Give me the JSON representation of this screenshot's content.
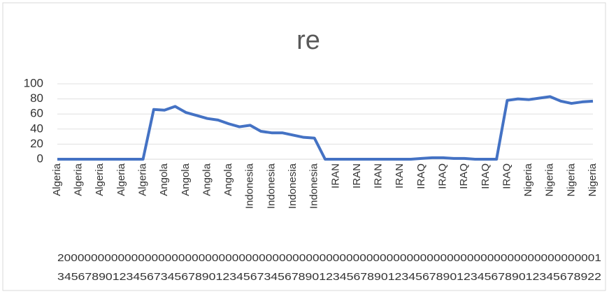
{
  "chart_data": {
    "type": "line",
    "title": "re",
    "categories": [
      "Algeria",
      null,
      "Algeria",
      null,
      "Algeria",
      null,
      "Algeria",
      null,
      "Algeria",
      null,
      "Angola",
      null,
      "Angola",
      null,
      "Angola",
      null,
      "Angola",
      null,
      "Indonesia",
      null,
      "Indonesia",
      null,
      "Indonesia",
      null,
      "Indonesia",
      null,
      "IRAN",
      null,
      "IRAN",
      null,
      "IRAN",
      null,
      "IRAN",
      null,
      "IRAQ",
      null,
      "IRAQ",
      null,
      "IRAQ",
      null,
      "IRAQ",
      null,
      "IRAQ",
      null,
      "Nigeria",
      null,
      "Nigeria",
      null,
      "Nigeria",
      null,
      "Nigeria"
    ],
    "series": [
      {
        "name": "re",
        "color": "#4472c4",
        "values": [
          0,
          0,
          0,
          0,
          0,
          0,
          0,
          0,
          0,
          66,
          65,
          70,
          62,
          58,
          54,
          52,
          47,
          43,
          45,
          37,
          35,
          35,
          32,
          29,
          28,
          0,
          0,
          0,
          0,
          0,
          0,
          0,
          0,
          0,
          1,
          2,
          2,
          1,
          1,
          0,
          0,
          0,
          78,
          80,
          79,
          81,
          83,
          77,
          74,
          76,
          77
        ]
      }
    ],
    "year_rows": [
      "200000000000000000000000000000000000000000000000000000000000000000000000000000001",
      "3456789012345673456789012345673456789012345678901234567890123456789012345678922"
    ],
    "ylim": [
      0,
      100
    ],
    "yticks": [
      0,
      20,
      40,
      60,
      80,
      100
    ],
    "grid": true
  }
}
